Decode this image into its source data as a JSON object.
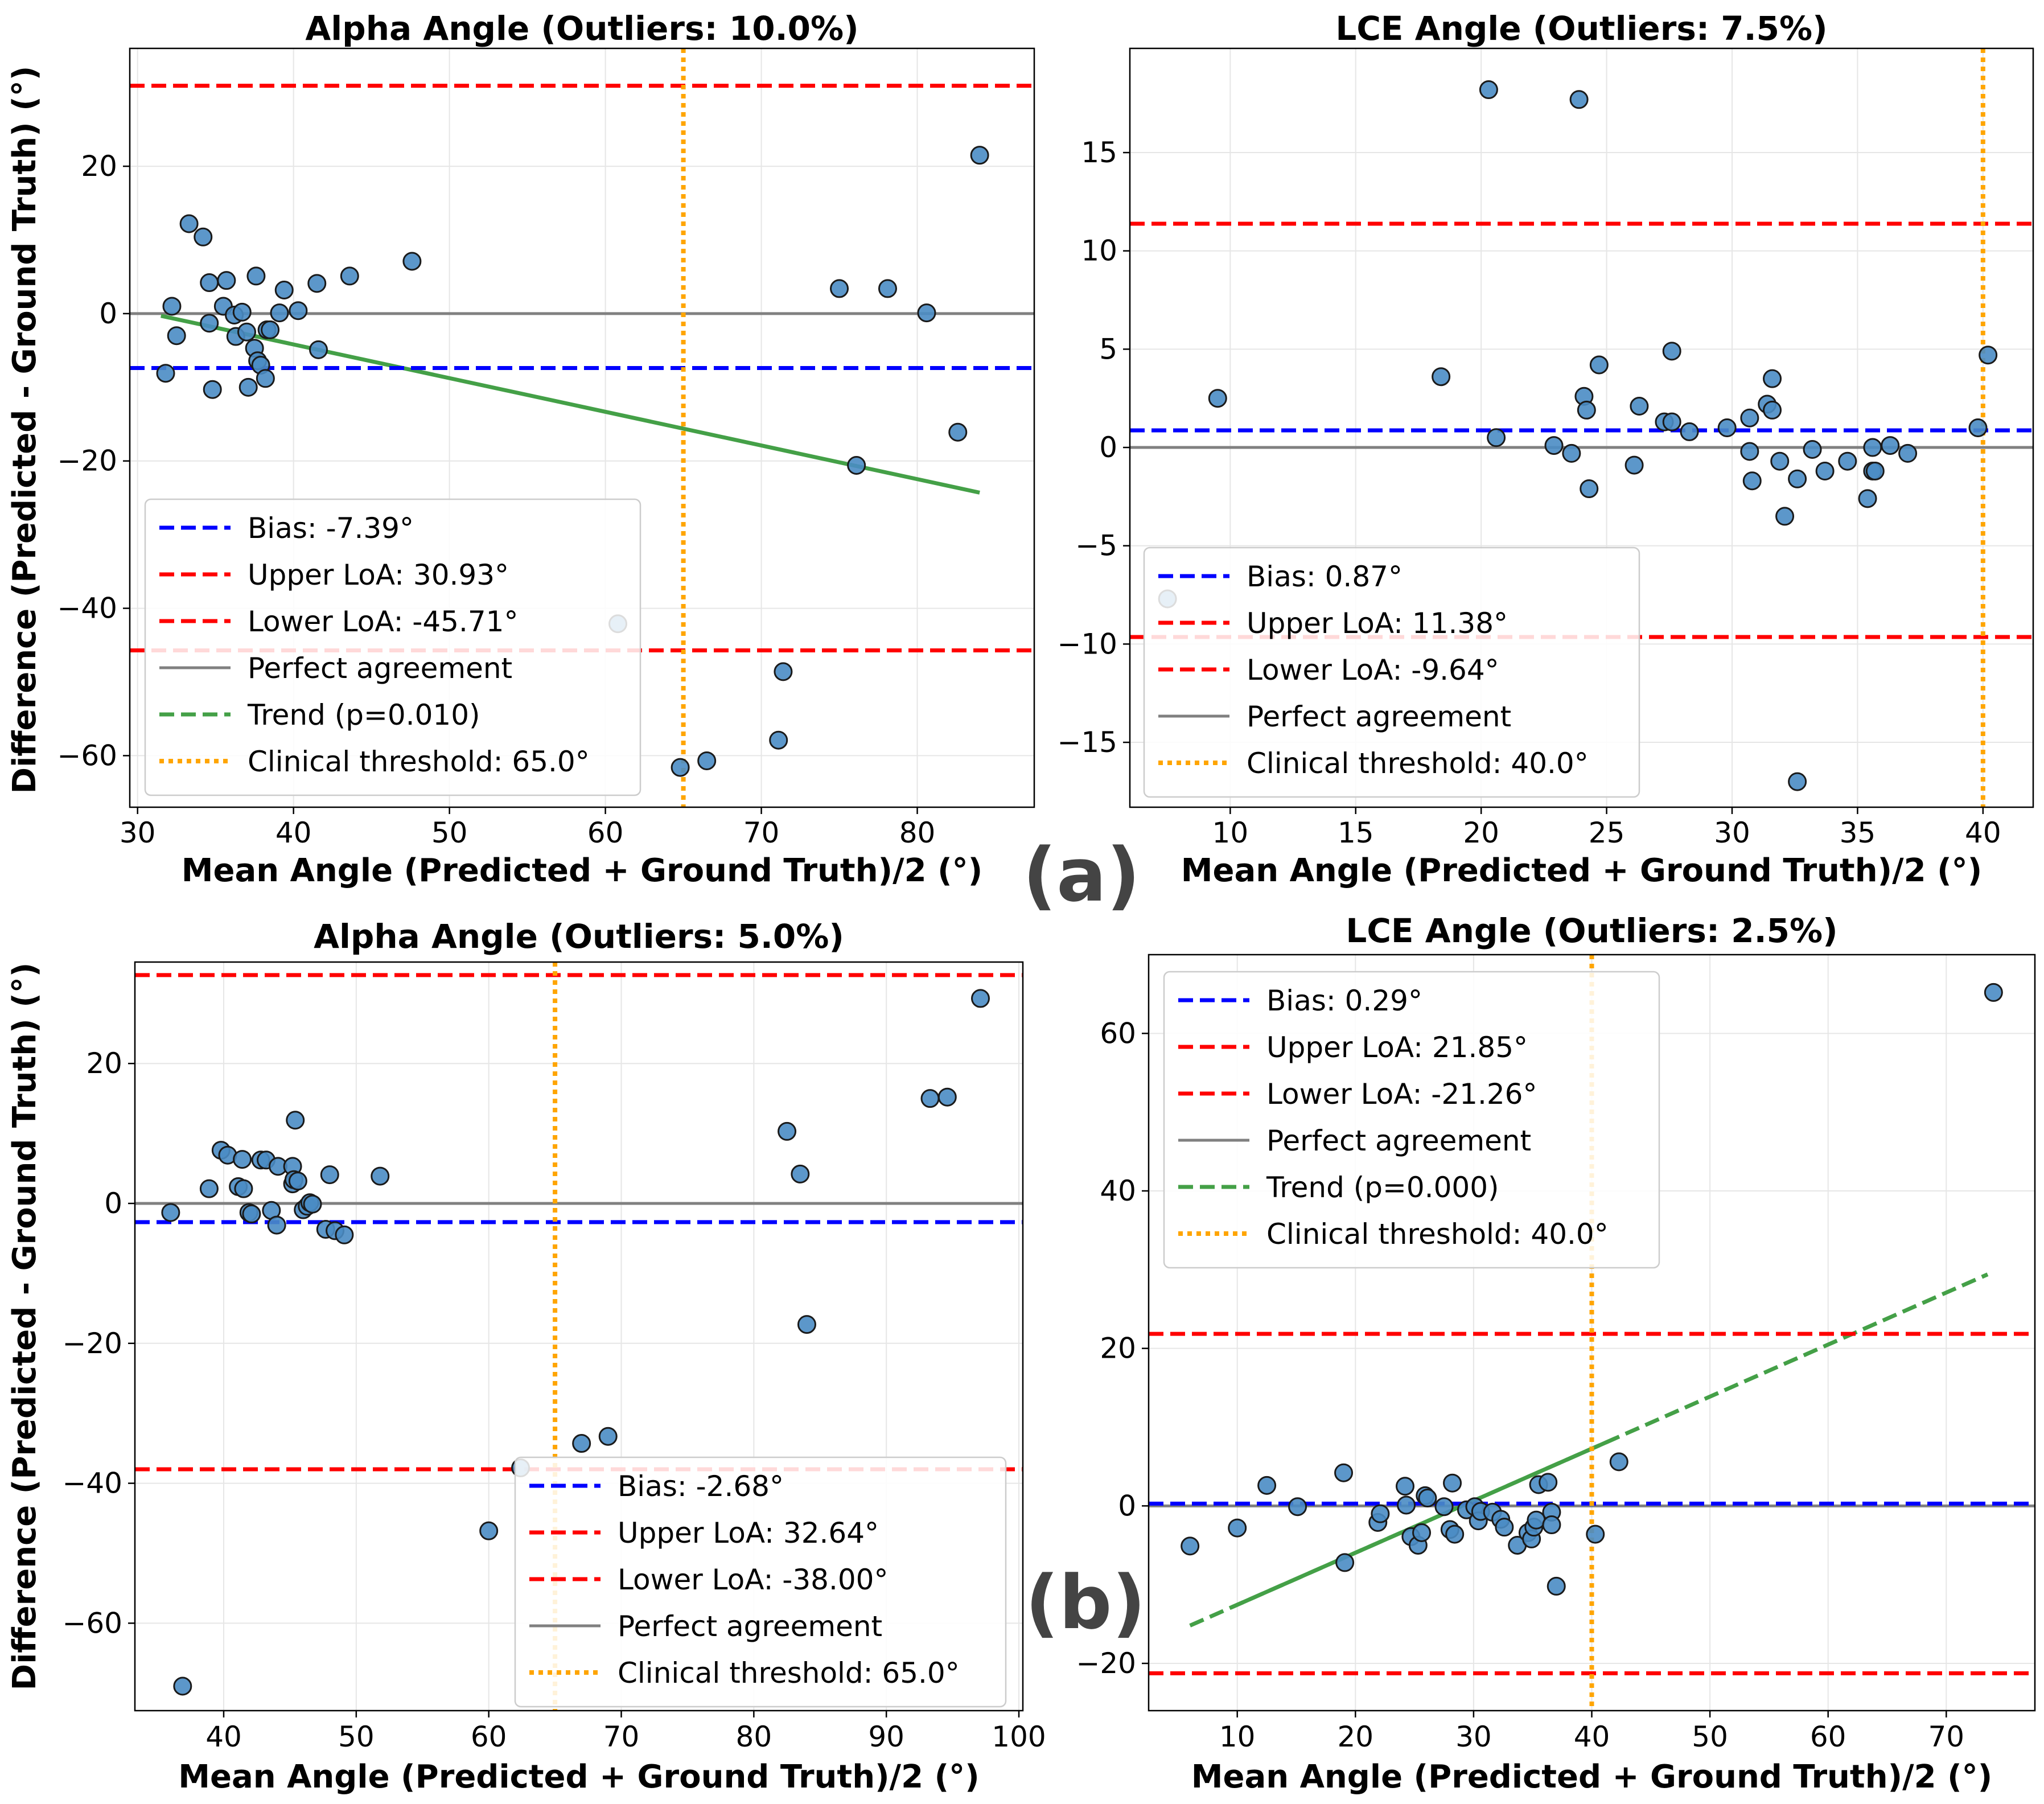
{
  "figure": {
    "ylabel_a": "Difference (Predicted - Ground Truth) (°)",
    "ylabel_b": "Difference (Predicted - Ground Truth) (°)",
    "panel_a_letter": "(a)",
    "panel_b_letter": "(b)"
  },
  "colors": {
    "bias": "#0000ff",
    "loa": "#ff0000",
    "perfect": "#808080",
    "trend": "#44a047",
    "threshold": "#ffa500",
    "points_fill": "#4a8cc4",
    "points_edge": "#1a1a1a"
  },
  "chart_data": [
    {
      "type": "scatter",
      "title": "Alpha Angle (Outliers: 10.0%)",
      "xlabel": "Mean Angle (Predicted + Ground Truth)/2 (°)",
      "ylabel": "Difference (Predicted - Ground Truth) (°)",
      "xlim": [
        29.5,
        87.5
      ],
      "ylim": [
        -67,
        36
      ],
      "xticks": [
        30,
        40,
        50,
        60,
        70,
        80
      ],
      "yticks": [
        -60,
        -40,
        -20,
        0,
        20
      ],
      "grid": true,
      "bias": -7.39,
      "upper_loa": 30.93,
      "lower_loa": -45.71,
      "threshold": 65.0,
      "trend": {
        "style": "solid",
        "x": [
          31.5,
          84
        ],
        "y": [
          -0.3,
          -24.3
        ]
      },
      "legend_location": "lower-left",
      "legend": [
        "Bias: -7.39°",
        "Upper LoA: 30.93°",
        "Lower LoA: -45.71°",
        "Perfect agreement",
        "Trend (p=0.010)",
        "Clinical threshold: 65.0°"
      ],
      "points": [
        [
          31.8,
          -8.1
        ],
        [
          32.2,
          1.0
        ],
        [
          32.5,
          -3.0
        ],
        [
          33.3,
          12.2
        ],
        [
          34.2,
          10.4
        ],
        [
          34.6,
          4.2
        ],
        [
          34.6,
          -1.3
        ],
        [
          34.8,
          -10.3
        ],
        [
          35.5,
          1.0
        ],
        [
          35.7,
          4.5
        ],
        [
          36.2,
          -0.2
        ],
        [
          36.3,
          -3.1
        ],
        [
          36.7,
          0.2
        ],
        [
          37.0,
          -2.5
        ],
        [
          37.1,
          -10.0
        ],
        [
          37.5,
          -4.7
        ],
        [
          37.6,
          5.1
        ],
        [
          37.7,
          -6.4
        ],
        [
          37.9,
          -7.0
        ],
        [
          38.2,
          -8.8
        ],
        [
          38.3,
          -2.2
        ],
        [
          38.5,
          -2.2
        ],
        [
          39.1,
          0.1
        ],
        [
          39.4,
          3.2
        ],
        [
          40.3,
          0.4
        ],
        [
          41.5,
          4.1
        ],
        [
          41.6,
          -4.9
        ],
        [
          43.6,
          5.1
        ],
        [
          47.6,
          7.1
        ],
        [
          60.8,
          -42.1
        ],
        [
          64.8,
          -61.6
        ],
        [
          66.5,
          -60.7
        ],
        [
          71.1,
          -57.9
        ],
        [
          71.4,
          -48.6
        ],
        [
          75.0,
          3.4
        ],
        [
          76.1,
          -20.6
        ],
        [
          78.1,
          3.4
        ],
        [
          80.6,
          0.1
        ],
        [
          82.6,
          -16.1
        ],
        [
          84.0,
          21.5
        ]
      ]
    },
    {
      "type": "scatter",
      "title": "LCE Angle (Outliers: 7.5%)",
      "xlabel": "Mean Angle (Predicted + Ground Truth)/2 (°)",
      "ylabel": "",
      "xlim": [
        6.0,
        42.0
      ],
      "ylim": [
        -18.3,
        20.3
      ],
      "xticks": [
        10,
        15,
        20,
        25,
        30,
        35,
        40
      ],
      "yticks": [
        -15,
        -10,
        -5,
        0,
        5,
        10,
        15
      ],
      "grid": true,
      "bias": 0.87,
      "upper_loa": 11.38,
      "lower_loa": -9.64,
      "threshold": 40.0,
      "trend": null,
      "legend_location": "lower-left",
      "legend": [
        "Bias: 0.87°",
        "Upper LoA: 11.38°",
        "Lower LoA: -9.64°",
        "Perfect agreement",
        "Clinical threshold: 40.0°"
      ],
      "points": [
        [
          7.5,
          -7.7
        ],
        [
          9.5,
          2.5
        ],
        [
          18.4,
          3.6
        ],
        [
          20.3,
          18.2
        ],
        [
          20.6,
          0.5
        ],
        [
          22.9,
          0.1
        ],
        [
          23.6,
          -0.3
        ],
        [
          23.9,
          17.7
        ],
        [
          24.1,
          2.6
        ],
        [
          24.2,
          1.9
        ],
        [
          24.3,
          -2.1
        ],
        [
          24.7,
          4.2
        ],
        [
          26.1,
          -0.9
        ],
        [
          26.3,
          2.1
        ],
        [
          27.3,
          1.3
        ],
        [
          27.6,
          1.3
        ],
        [
          27.6,
          4.9
        ],
        [
          28.3,
          0.8
        ],
        [
          29.8,
          1.0
        ],
        [
          30.7,
          1.5
        ],
        [
          30.7,
          -0.2
        ],
        [
          30.8,
          -1.7
        ],
        [
          31.4,
          2.2
        ],
        [
          31.6,
          1.9
        ],
        [
          31.6,
          3.5
        ],
        [
          31.9,
          -0.7
        ],
        [
          32.1,
          -3.5
        ],
        [
          32.6,
          -1.6
        ],
        [
          32.6,
          -17.0
        ],
        [
          33.2,
          -0.1
        ],
        [
          33.7,
          -1.2
        ],
        [
          34.6,
          -0.7
        ],
        [
          35.4,
          -2.6
        ],
        [
          35.6,
          -1.2
        ],
        [
          35.6,
          -0.0
        ],
        [
          35.7,
          -1.2
        ],
        [
          36.3,
          0.1
        ],
        [
          37.0,
          -0.3
        ],
        [
          39.8,
          1.0
        ],
        [
          40.2,
          4.7
        ]
      ]
    },
    {
      "type": "scatter",
      "title": "Alpha Angle (Outliers: 5.0%)",
      "xlabel": "Mean Angle (Predicted + Ground Truth)/2 (°)",
      "ylabel": "Difference (Predicted - Ground Truth) (°)",
      "xlim": [
        33.3,
        100.3
      ],
      "ylim": [
        -72.5,
        34.5
      ],
      "xticks": [
        40,
        50,
        60,
        70,
        80,
        90,
        100
      ],
      "yticks": [
        -60,
        -40,
        -20,
        0,
        20
      ],
      "grid": true,
      "bias": -2.68,
      "upper_loa": 32.64,
      "lower_loa": -38.0,
      "threshold": 65.0,
      "trend": null,
      "legend_location": "lower-right",
      "legend": [
        "Bias: -2.68°",
        "Upper LoA: 32.64°",
        "Lower LoA: -38.00°",
        "Perfect agreement",
        "Clinical threshold: 65.0°"
      ],
      "points": [
        [
          36.0,
          -1.3
        ],
        [
          36.9,
          -69.0
        ],
        [
          38.9,
          2.1
        ],
        [
          39.8,
          7.6
        ],
        [
          40.3,
          6.9
        ],
        [
          41.1,
          2.4
        ],
        [
          41.4,
          6.3
        ],
        [
          41.5,
          2.1
        ],
        [
          41.9,
          -1.3
        ],
        [
          42.1,
          -1.5
        ],
        [
          42.8,
          6.2
        ],
        [
          43.2,
          6.2
        ],
        [
          43.6,
          -1.0
        ],
        [
          44.0,
          -3.1
        ],
        [
          44.1,
          5.3
        ],
        [
          45.2,
          5.3
        ],
        [
          45.2,
          2.8
        ],
        [
          45.3,
          3.4
        ],
        [
          45.4,
          11.9
        ],
        [
          45.6,
          3.2
        ],
        [
          46.0,
          -0.9
        ],
        [
          46.3,
          -0.4
        ],
        [
          46.5,
          0.1
        ],
        [
          46.7,
          -0.1
        ],
        [
          47.7,
          -3.7
        ],
        [
          48.0,
          4.1
        ],
        [
          48.4,
          -3.9
        ],
        [
          49.1,
          -4.5
        ],
        [
          51.8,
          3.9
        ],
        [
          60.0,
          -46.8
        ],
        [
          62.4,
          -37.8
        ],
        [
          67.0,
          -34.3
        ],
        [
          69.0,
          -33.3
        ],
        [
          82.5,
          10.3
        ],
        [
          83.5,
          4.2
        ],
        [
          84.0,
          -17.3
        ],
        [
          93.3,
          15.0
        ],
        [
          94.6,
          15.2
        ],
        [
          97.1,
          29.3
        ]
      ]
    },
    {
      "type": "scatter",
      "title": "LCE Angle (Outliers: 2.5%)",
      "xlabel": "Mean Angle (Predicted + Ground Truth)/2 (°)",
      "ylabel": "",
      "xlim": [
        2.5,
        77.5
      ],
      "ylim": [
        -26,
        70
      ],
      "xticks": [
        10,
        20,
        30,
        40,
        50,
        60,
        70
      ],
      "yticks": [
        -20,
        0,
        20,
        40,
        60
      ],
      "grid": true,
      "bias": 0.29,
      "upper_loa": 21.85,
      "lower_loa": -21.26,
      "threshold": 40.0,
      "trend": {
        "style": "dashed",
        "x": [
          6,
          73.5
        ],
        "y": [
          -15.2,
          29.4
        ],
        "solid_x": [
          9.5,
          42
        ]
      },
      "legend_location": "upper-left",
      "legend": [
        "Bias: 0.29°",
        "Upper LoA: 21.85°",
        "Lower LoA: -21.26°",
        "Perfect agreement",
        "Trend (p=0.000)",
        "Clinical threshold: 40.0°"
      ],
      "points": [
        [
          6.0,
          -5.1
        ],
        [
          10.0,
          -2.8
        ],
        [
          12.5,
          2.6
        ],
        [
          15.1,
          -0.1
        ],
        [
          19.0,
          4.2
        ],
        [
          19.1,
          -7.2
        ],
        [
          21.9,
          -2.1
        ],
        [
          22.1,
          -1.0
        ],
        [
          24.2,
          2.5
        ],
        [
          24.3,
          0.1
        ],
        [
          24.7,
          -3.9
        ],
        [
          25.3,
          -5.0
        ],
        [
          25.6,
          -3.4
        ],
        [
          25.9,
          1.3
        ],
        [
          26.1,
          1.0
        ],
        [
          27.5,
          -0.1
        ],
        [
          28.0,
          -3.0
        ],
        [
          28.2,
          2.9
        ],
        [
          28.4,
          -3.6
        ],
        [
          29.4,
          -0.5
        ],
        [
          30.1,
          -0.1
        ],
        [
          30.4,
          -1.9
        ],
        [
          30.6,
          -0.7
        ],
        [
          31.6,
          -0.8
        ],
        [
          32.3,
          -1.7
        ],
        [
          32.6,
          -2.7
        ],
        [
          33.7,
          -5.0
        ],
        [
          34.6,
          -3.4
        ],
        [
          34.9,
          -4.2
        ],
        [
          35.1,
          -2.7
        ],
        [
          35.3,
          -1.8
        ],
        [
          35.5,
          2.7
        ],
        [
          36.3,
          3.0
        ],
        [
          36.6,
          -0.8
        ],
        [
          36.6,
          -2.4
        ],
        [
          37.0,
          -10.2
        ],
        [
          40.3,
          -3.6
        ],
        [
          42.3,
          5.6
        ],
        [
          74.0,
          65.2
        ]
      ]
    }
  ]
}
